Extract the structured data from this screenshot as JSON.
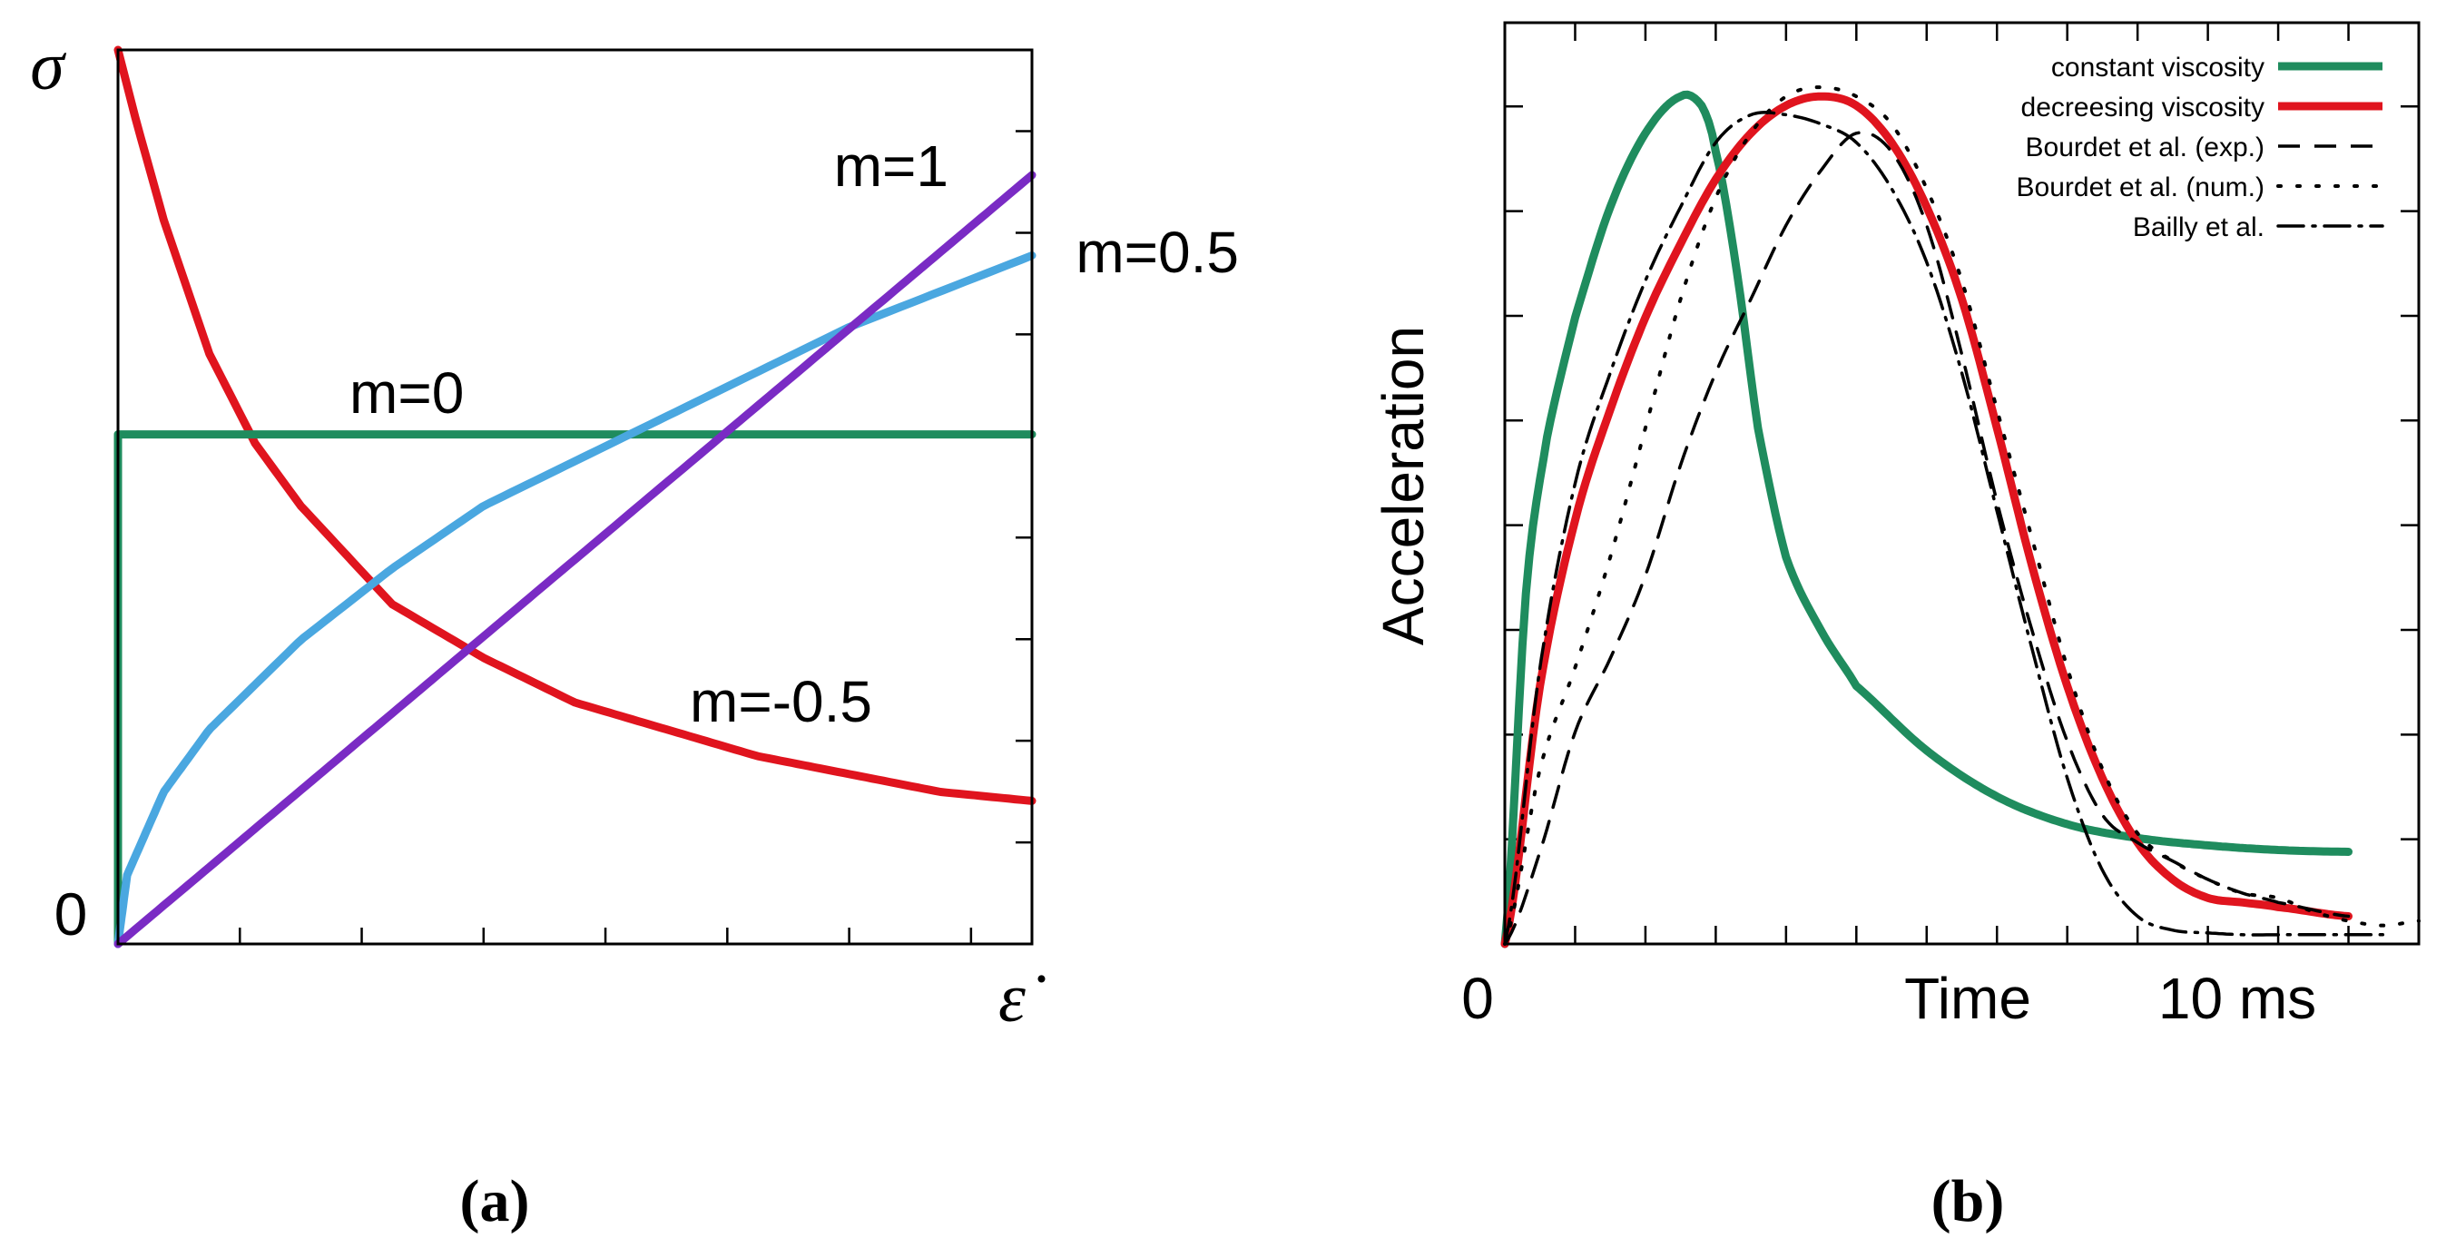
{
  "chart_data": [
    {
      "type": "line",
      "panel_label": "(a)",
      "ylabel": "σ",
      "xlabel": "ε̇",
      "y_zero_label": "0",
      "xlim": [
        0,
        1
      ],
      "ylim": [
        0,
        1
      ],
      "grid": false,
      "model": "power law σ = ε̇^m",
      "series": [
        {
          "name": "m=-0.5",
          "exponent": -0.5,
          "label": "m=-0.5",
          "color": "#e0141e",
          "x": [
            0.0,
            0.02,
            0.05,
            0.1,
            0.15,
            0.2,
            0.3,
            0.4,
            0.5,
            0.6,
            0.7,
            0.8,
            0.9,
            1.0
          ],
          "y": [
            1.0,
            0.92,
            0.81,
            0.66,
            0.56,
            0.49,
            0.38,
            0.32,
            0.27,
            0.24,
            0.21,
            0.19,
            0.17,
            0.16
          ]
        },
        {
          "name": "m=0",
          "exponent": 0,
          "label": "m=0",
          "color": "#1f8c5e",
          "x": [
            0.0,
            1.0
          ],
          "y": [
            0.57,
            0.57
          ]
        },
        {
          "name": "m=0.5",
          "exponent": 0.5,
          "label": "m=0.5",
          "color": "#4aa7e0",
          "x": [
            0.0,
            0.01,
            0.05,
            0.1,
            0.2,
            0.3,
            0.4,
            0.5,
            0.6,
            0.7,
            0.8,
            0.9,
            1.0
          ],
          "y": [
            0.0,
            0.077,
            0.17,
            0.24,
            0.34,
            0.42,
            0.49,
            0.54,
            0.59,
            0.64,
            0.69,
            0.73,
            0.77
          ]
        },
        {
          "name": "m=1",
          "exponent": 1,
          "label": "m=1",
          "color": "#7a2bc4",
          "x": [
            0.0,
            1.0
          ],
          "y": [
            0.0,
            0.86
          ]
        }
      ]
    },
    {
      "type": "line",
      "panel_label": "(b)",
      "ylabel": "Acceleration",
      "xlabel": "Time",
      "x_zero_label": "0",
      "x_end_label": "10 ms",
      "xlim": [
        0,
        13
      ],
      "ylim": [
        0,
        1
      ],
      "grid": false,
      "legend_position": "top-right",
      "series": [
        {
          "name": "constant viscosity",
          "style": "solid",
          "color": "#1f8c5e",
          "x": [
            0.0,
            0.3,
            0.6,
            1.0,
            1.5,
            2.0,
            2.5,
            2.8,
            3.0,
            3.3,
            3.6,
            4.0,
            4.5,
            5.0,
            6.0,
            7.0,
            8.0,
            9.0,
            10.0,
            11.0,
            12.0
          ],
          "y": [
            0.0,
            0.38,
            0.55,
            0.68,
            0.8,
            0.88,
            0.92,
            0.91,
            0.86,
            0.73,
            0.56,
            0.42,
            0.34,
            0.28,
            0.21,
            0.16,
            0.13,
            0.115,
            0.107,
            0.102,
            0.1
          ]
        },
        {
          "name": "decreesing viscosity",
          "style": "solid",
          "color": "#e0141e",
          "x": [
            0.0,
            0.5,
            1.0,
            1.5,
            2.0,
            2.5,
            3.0,
            3.5,
            4.0,
            4.5,
            5.0,
            5.5,
            6.0,
            6.5,
            7.0,
            7.5,
            8.0,
            8.5,
            9.0,
            9.5,
            10.0,
            10.5,
            11.0,
            12.0
          ],
          "y": [
            0.0,
            0.28,
            0.46,
            0.58,
            0.68,
            0.76,
            0.83,
            0.88,
            0.91,
            0.92,
            0.91,
            0.87,
            0.8,
            0.7,
            0.56,
            0.41,
            0.28,
            0.18,
            0.11,
            0.07,
            0.05,
            0.045,
            0.04,
            0.03
          ]
        },
        {
          "name": "Bourdet et al. (exp.)",
          "style": "dashed",
          "color": "#000000",
          "x": [
            0.0,
            0.5,
            1.0,
            1.5,
            2.0,
            2.5,
            3.0,
            3.5,
            4.0,
            4.5,
            5.0,
            5.5,
            6.0,
            6.5,
            7.0,
            7.5,
            8.0,
            8.5,
            9.0,
            9.5,
            10.0,
            10.5,
            11.0,
            12.0
          ],
          "y": [
            0.0,
            0.1,
            0.23,
            0.31,
            0.4,
            0.52,
            0.62,
            0.7,
            0.78,
            0.84,
            0.88,
            0.86,
            0.78,
            0.64,
            0.48,
            0.34,
            0.22,
            0.14,
            0.11,
            0.09,
            0.07,
            0.055,
            0.045,
            0.03
          ]
        },
        {
          "name": "Bourdet et al. (num.)",
          "style": "dotted",
          "color": "#000000",
          "x": [
            0.0,
            0.5,
            1.0,
            1.5,
            2.0,
            2.5,
            3.0,
            3.5,
            4.0,
            4.5,
            5.0,
            5.5,
            6.0,
            6.5,
            7.0,
            7.5,
            8.0,
            8.5,
            9.0,
            9.5,
            10.0,
            10.5,
            11.0,
            11.5,
            12.0,
            12.5,
            13.0
          ],
          "y": [
            0.0,
            0.19,
            0.3,
            0.42,
            0.56,
            0.7,
            0.81,
            0.88,
            0.92,
            0.93,
            0.92,
            0.89,
            0.82,
            0.72,
            0.58,
            0.44,
            0.3,
            0.19,
            0.12,
            0.09,
            0.07,
            0.055,
            0.05,
            0.035,
            0.025,
            0.02,
            0.025
          ]
        },
        {
          "name": "Bailly et al.",
          "style": "dashdot",
          "color": "#000000",
          "x": [
            0.0,
            0.5,
            1.0,
            1.5,
            2.0,
            2.5,
            3.0,
            3.5,
            4.0,
            4.5,
            5.0,
            5.5,
            6.0,
            6.5,
            7.0,
            7.5,
            8.0,
            8.5,
            9.0,
            9.5,
            10.0,
            10.5,
            11.0,
            12.0,
            12.5
          ],
          "y": [
            0.0,
            0.3,
            0.5,
            0.62,
            0.72,
            0.8,
            0.87,
            0.9,
            0.9,
            0.89,
            0.87,
            0.82,
            0.74,
            0.62,
            0.47,
            0.32,
            0.18,
            0.08,
            0.03,
            0.015,
            0.012,
            0.01,
            0.01,
            0.01,
            0.01
          ]
        }
      ]
    }
  ]
}
